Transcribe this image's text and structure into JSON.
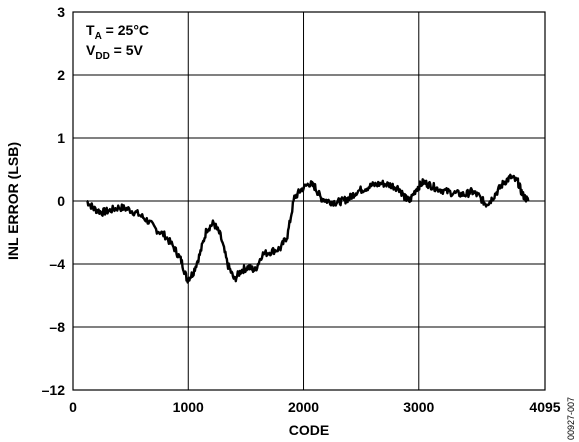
{
  "chart_data": {
    "type": "line",
    "title": "",
    "xlabel": "CODE",
    "ylabel": "INL ERROR (LSB)",
    "xlim": [
      0,
      4095
    ],
    "x_ticks": [
      0,
      1000,
      2000,
      3000,
      4095
    ],
    "y_tick_labels": [
      "3",
      "2",
      "1",
      "0",
      "–4",
      "–8",
      "–12"
    ],
    "grid": true,
    "annotations": {
      "ta_label": "T",
      "ta_sub": "A",
      "ta_value": " = 25°C",
      "vdd_label": "V",
      "vdd_sub": "DD",
      "vdd_value": " = 5V"
    },
    "figure_id": "00927-007",
    "series": [
      {
        "points": [
          [
            120,
            0.0
          ],
          [
            180,
            -0.12
          ],
          [
            250,
            -0.18
          ],
          [
            320,
            -0.15
          ],
          [
            400,
            -0.1
          ],
          [
            480,
            -0.13
          ],
          [
            560,
            -0.2
          ],
          [
            640,
            -0.3
          ],
          [
            720,
            -0.45
          ],
          [
            800,
            -0.55
          ],
          [
            880,
            -0.75
          ],
          [
            940,
            -0.95
          ],
          [
            990,
            -1.25
          ],
          [
            1040,
            -1.15
          ],
          [
            1100,
            -0.85
          ],
          [
            1160,
            -0.45
          ],
          [
            1220,
            -0.35
          ],
          [
            1280,
            -0.55
          ],
          [
            1340,
            -1.0
          ],
          [
            1400,
            -1.25
          ],
          [
            1460,
            -1.1
          ],
          [
            1520,
            -1.05
          ],
          [
            1580,
            -1.1
          ],
          [
            1640,
            -0.85
          ],
          [
            1720,
            -0.8
          ],
          [
            1800,
            -0.75
          ],
          [
            1860,
            -0.55
          ],
          [
            1920,
            0.05
          ],
          [
            1980,
            0.18
          ],
          [
            2050,
            0.28
          ],
          [
            2100,
            0.22
          ],
          [
            2150,
            0.05
          ],
          [
            2210,
            0.0
          ],
          [
            2280,
            -0.02
          ],
          [
            2340,
            0.0
          ],
          [
            2400,
            0.05
          ],
          [
            2460,
            0.15
          ],
          [
            2530,
            0.2
          ],
          [
            2600,
            0.25
          ],
          [
            2680,
            0.28
          ],
          [
            2760,
            0.25
          ],
          [
            2830,
            0.2
          ],
          [
            2880,
            0.05
          ],
          [
            2920,
            0.0
          ],
          [
            2980,
            0.2
          ],
          [
            3040,
            0.3
          ],
          [
            3100,
            0.25
          ],
          [
            3160,
            0.2
          ],
          [
            3240,
            0.15
          ],
          [
            3320,
            0.12
          ],
          [
            3400,
            0.1
          ],
          [
            3460,
            0.15
          ],
          [
            3520,
            0.08
          ],
          [
            3580,
            -0.05
          ],
          [
            3620,
            0.0
          ],
          [
            3680,
            0.15
          ],
          [
            3740,
            0.3
          ],
          [
            3800,
            0.38
          ],
          [
            3860,
            0.3
          ],
          [
            3900,
            0.1
          ],
          [
            3950,
            0.0
          ]
        ]
      }
    ]
  }
}
